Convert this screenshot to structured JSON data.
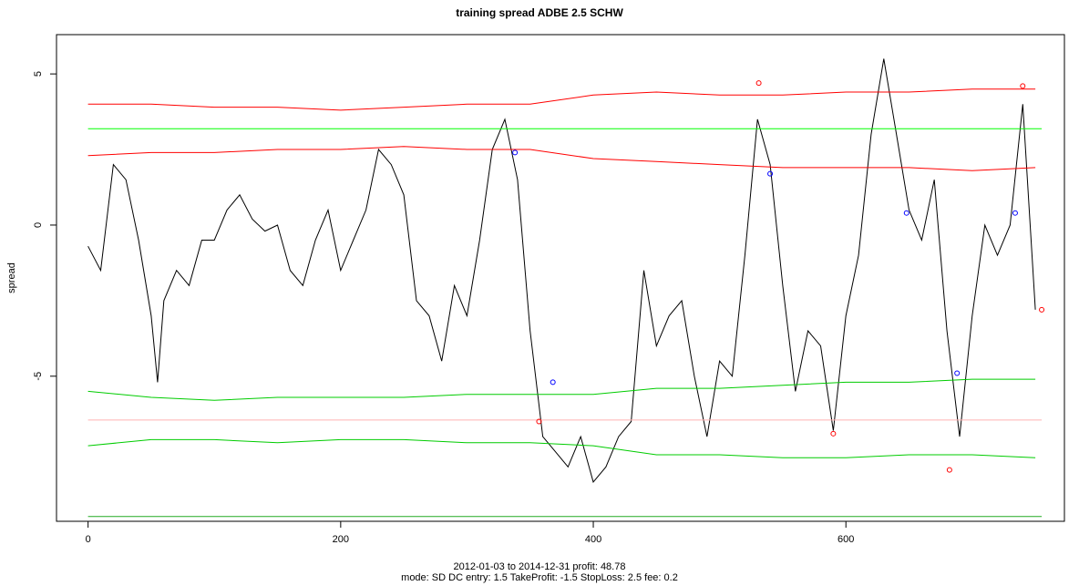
{
  "chart_data": {
    "type": "line",
    "title": "training spread ADBE 2.5 SCHW",
    "y_label": "spread",
    "subtitle": [
      "2012-01-03 to 2014-12-31 profit: 48.78",
      "mode: SD DC entry: 1.5 TakeProfit: -1.5 StopLoss: 2.5 fee: 0.2"
    ],
    "xlim": [
      -25,
      773
    ],
    "ylim": [
      -9.8,
      6.3
    ],
    "xticks": [
      0,
      200,
      400,
      600
    ],
    "yticks": [
      -5,
      0,
      5
    ],
    "series": [
      {
        "color": "#000000",
        "style": "line",
        "x": [
          0,
          10,
          20,
          30,
          40,
          50,
          55,
          60,
          70,
          80,
          90,
          100,
          110,
          120,
          130,
          140,
          150,
          160,
          170,
          180,
          190,
          200,
          210,
          220,
          230,
          240,
          250,
          260,
          270,
          280,
          290,
          300,
          310,
          320,
          330,
          340,
          350,
          360,
          370,
          380,
          390,
          400,
          410,
          420,
          430,
          440,
          450,
          460,
          470,
          480,
          490,
          500,
          510,
          520,
          530,
          540,
          550,
          560,
          570,
          580,
          590,
          600,
          610,
          620,
          630,
          640,
          650,
          660,
          670,
          680,
          690,
          700,
          710,
          720,
          730,
          740,
          750
        ],
        "values": [
          -0.7,
          -1.5,
          2.0,
          1.5,
          -0.5,
          -3.0,
          -5.2,
          -2.5,
          -1.5,
          -2.0,
          -0.5,
          -0.5,
          0.5,
          1.0,
          0.2,
          -0.2,
          0.0,
          -1.5,
          -2.0,
          -0.5,
          0.5,
          -1.5,
          -0.5,
          0.5,
          2.5,
          2.0,
          1.0,
          -2.5,
          -3.0,
          -4.5,
          -2.0,
          -3.0,
          -0.5,
          2.5,
          3.5,
          1.5,
          -3.5,
          -7.0,
          -7.5,
          -8.0,
          -7.0,
          -8.5,
          -8.0,
          -7.0,
          -6.5,
          -1.5,
          -4.0,
          -3.0,
          -2.5,
          -5.0,
          -7.0,
          -4.5,
          -5.0,
          -1.0,
          3.5,
          2.0,
          -2.0,
          -5.5,
          -3.5,
          -4.0,
          -6.8,
          -3.0,
          -1.0,
          3.0,
          5.5,
          3.0,
          0.5,
          -0.5,
          1.5,
          -3.5,
          -7.0,
          -3.0,
          0.0,
          -1.0,
          0.0,
          4.0,
          -2.8
        ]
      },
      {
        "color": "#ff0000",
        "style": "line",
        "x": [
          0,
          50,
          100,
          150,
          200,
          250,
          300,
          350,
          400,
          450,
          500,
          550,
          600,
          650,
          700,
          750
        ],
        "values": [
          4.0,
          4.0,
          3.9,
          3.9,
          3.8,
          3.9,
          4.0,
          4.0,
          4.3,
          4.4,
          4.3,
          4.3,
          4.4,
          4.4,
          4.5,
          4.5
        ]
      },
      {
        "color": "#ff0000",
        "style": "line",
        "x": [
          0,
          50,
          100,
          150,
          200,
          250,
          300,
          350,
          400,
          450,
          500,
          550,
          600,
          650,
          700,
          750
        ],
        "values": [
          2.3,
          2.4,
          2.4,
          2.5,
          2.5,
          2.6,
          2.5,
          2.5,
          2.2,
          2.1,
          2.0,
          1.9,
          1.9,
          1.9,
          1.8,
          1.9
        ]
      },
      {
        "color": "#00cc00",
        "style": "line",
        "x": [
          0,
          50,
          100,
          150,
          200,
          250,
          300,
          350,
          400,
          450,
          500,
          550,
          600,
          650,
          700,
          750
        ],
        "values": [
          -5.5,
          -5.7,
          -5.8,
          -5.7,
          -5.7,
          -5.7,
          -5.6,
          -5.6,
          -5.6,
          -5.4,
          -5.4,
          -5.3,
          -5.2,
          -5.2,
          -5.1,
          -5.1
        ]
      },
      {
        "color": "#00cc00",
        "style": "line",
        "x": [
          0,
          50,
          100,
          150,
          200,
          250,
          300,
          350,
          400,
          450,
          500,
          550,
          600,
          650,
          700,
          750
        ],
        "values": [
          -7.3,
          -7.1,
          -7.1,
          -7.2,
          -7.1,
          -7.1,
          -7.2,
          -7.2,
          -7.3,
          -7.6,
          -7.6,
          -7.7,
          -7.7,
          -7.6,
          -7.6,
          -7.7
        ]
      },
      {
        "color": "#00ff00",
        "style": "line",
        "x": [
          0,
          755
        ],
        "values": [
          3.19,
          3.19
        ]
      },
      {
        "color": "#ffb0b0",
        "style": "line",
        "x": [
          0,
          755
        ],
        "values": [
          -6.45,
          -6.45
        ]
      },
      {
        "color": "#22aa22",
        "style": "line",
        "x": [
          0,
          755
        ],
        "values": [
          -9.64,
          -9.64
        ]
      },
      {
        "color": "#0000ff",
        "style": "points",
        "x": [
          338,
          368,
          540,
          648,
          688,
          734
        ],
        "values": [
          2.4,
          -5.2,
          1.7,
          0.4,
          -4.9,
          0.4
        ]
      },
      {
        "color": "#ff0000",
        "style": "points",
        "x": [
          357,
          531,
          590,
          682,
          740,
          755
        ],
        "values": [
          -6.5,
          4.7,
          -6.9,
          -8.1,
          4.6,
          -2.8
        ]
      }
    ]
  }
}
